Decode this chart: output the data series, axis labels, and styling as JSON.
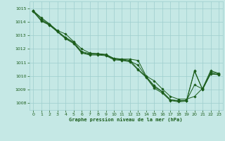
{
  "background_color": "#c5e8e5",
  "grid_color": "#9ecece",
  "line_color": "#1a5c1a",
  "marker_color": "#1a5c1a",
  "xlabel": "Graphe pression niveau de la mer (hPa)",
  "xlabel_color": "#1a5c1a",
  "tick_color": "#1a5c1a",
  "xlim": [
    -0.5,
    23.5
  ],
  "ylim": [
    1007.5,
    1015.5
  ],
  "yticks": [
    1008,
    1009,
    1010,
    1011,
    1012,
    1013,
    1014,
    1015
  ],
  "xticks": [
    0,
    1,
    2,
    3,
    4,
    5,
    6,
    7,
    8,
    9,
    10,
    11,
    12,
    13,
    14,
    15,
    16,
    17,
    18,
    19,
    20,
    21,
    22,
    23
  ],
  "series": [
    [
      1014.8,
      1014.3,
      1013.85,
      1013.35,
      1013.1,
      1012.55,
      1012.0,
      1011.7,
      1011.65,
      1011.55,
      1011.3,
      1011.25,
      1011.25,
      1011.15,
      1010.0,
      1009.65,
      1009.05,
      1008.5,
      1008.3,
      1008.3,
      1008.5,
      1009.1,
      1010.4,
      1010.2
    ],
    [
      1014.8,
      1014.2,
      1013.8,
      1013.3,
      1012.85,
      1012.5,
      1011.8,
      1011.65,
      1011.65,
      1011.6,
      1011.3,
      1011.25,
      1011.15,
      1010.5,
      1009.95,
      1009.2,
      1008.85,
      1008.25,
      1008.15,
      1008.2,
      1009.35,
      1009.05,
      1010.15,
      1010.1
    ],
    [
      1014.75,
      1014.1,
      1013.8,
      1013.3,
      1012.8,
      1012.45,
      1011.75,
      1011.6,
      1011.6,
      1011.55,
      1011.25,
      1011.2,
      1011.1,
      1010.8,
      1009.95,
      1009.3,
      1008.85,
      1008.25,
      1008.2,
      1008.2,
      1010.4,
      1009.0,
      1010.3,
      1010.15
    ],
    [
      1014.75,
      1014.05,
      1013.75,
      1013.25,
      1012.75,
      1012.4,
      1011.7,
      1011.55,
      1011.55,
      1011.5,
      1011.2,
      1011.15,
      1011.05,
      1010.45,
      1009.9,
      1009.1,
      1008.75,
      1008.2,
      1008.1,
      1008.15,
      1010.35,
      1009.0,
      1010.2,
      1010.1
    ]
  ]
}
